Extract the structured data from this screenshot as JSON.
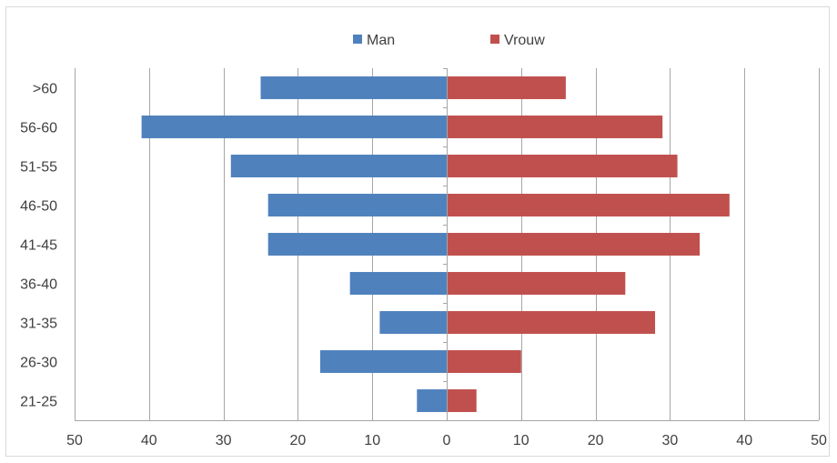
{
  "chart_data": {
    "type": "bar",
    "orientation": "horizontal",
    "style": "population-pyramid",
    "categories": [
      "21-25",
      "26-30",
      "31-35",
      "36-40",
      "41-45",
      "46-50",
      "51-55",
      "56-60",
      ">60"
    ],
    "series": [
      {
        "name": "Man",
        "color": "#4F81BD",
        "values": [
          4,
          17,
          9,
          13,
          24,
          24,
          29,
          41,
          25
        ],
        "side": "left"
      },
      {
        "name": "Vrouw",
        "color": "#C0504D",
        "values": [
          4,
          10,
          28,
          24,
          34,
          38,
          31,
          29,
          16
        ],
        "side": "right"
      }
    ],
    "xlim": [
      -50,
      50
    ],
    "xticks": [
      -50,
      -40,
      -30,
      -20,
      -10,
      0,
      10,
      20,
      30,
      40,
      50
    ],
    "xtick_labels": [
      "50",
      "40",
      "30",
      "20",
      "10",
      "0",
      "10",
      "20",
      "30",
      "40",
      "50"
    ],
    "title": "",
    "xlabel": "",
    "ylabel": "",
    "legend": {
      "position": "top",
      "entries": [
        "Man",
        "Vrouw"
      ]
    },
    "grid": {
      "vertical": true,
      "horizontal": false,
      "color": "#a6a6a6"
    }
  }
}
